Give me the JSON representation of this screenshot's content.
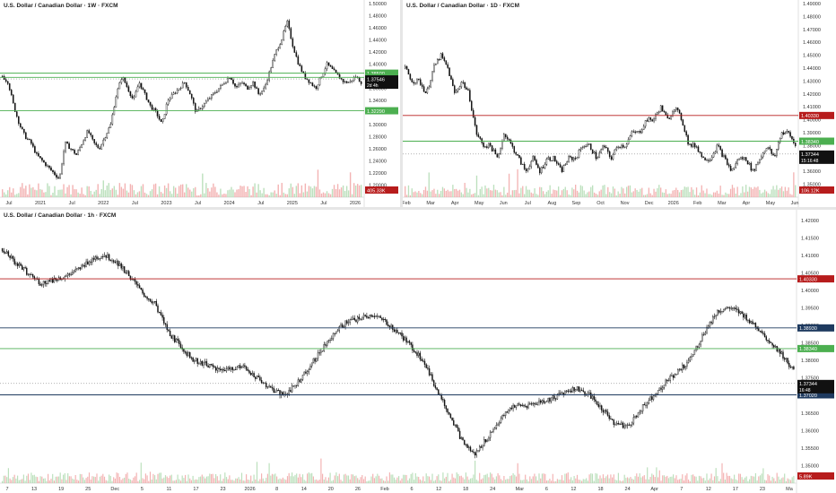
{
  "colors": {
    "candle": "#111111",
    "green_level": "#4caf50",
    "red_level": "#b71c1c",
    "blue_level": "#1e3a5f",
    "vol_up": "#a5d6a7",
    "vol_down": "#ef9a9a",
    "axis_text": "#333333",
    "price_badge": "#111111",
    "vol_badge": "#b71c1c"
  },
  "chart_data": [
    {
      "type": "candlestick",
      "title": "U.S. Dollar / Canadian Dollar · 1W · FXCM",
      "timeframe": "1W",
      "ylim": [
        1.18,
        1.5
      ],
      "y_ticks": [
        "1.50000",
        "1.48000",
        "1.46000",
        "1.44000",
        "1.42000",
        "1.40000",
        "1.38000",
        "1.36000",
        "1.34000",
        "1.32000",
        "1.30000",
        "1.28000",
        "1.26000",
        "1.24000",
        "1.22000",
        "1.20000"
      ],
      "x_ticks": [
        "Jul",
        "2021",
        "Jul",
        "2022",
        "Jul",
        "2023",
        "Jul",
        "2024",
        "Jul",
        "2025",
        "Jul",
        "2026"
      ],
      "price_path": [
        1.38,
        1.37,
        1.33,
        1.3,
        1.28,
        1.27,
        1.25,
        1.24,
        1.23,
        1.22,
        1.21,
        1.27,
        1.26,
        1.25,
        1.27,
        1.29,
        1.27,
        1.26,
        1.28,
        1.3,
        1.35,
        1.38,
        1.36,
        1.34,
        1.37,
        1.35,
        1.33,
        1.32,
        1.3,
        1.34,
        1.35,
        1.36,
        1.37,
        1.35,
        1.32,
        1.33,
        1.34,
        1.35,
        1.36,
        1.37,
        1.38,
        1.36,
        1.37,
        1.36,
        1.37,
        1.35,
        1.36,
        1.39,
        1.42,
        1.44,
        1.47,
        1.43,
        1.4,
        1.38,
        1.37,
        1.36,
        1.38,
        1.4,
        1.39,
        1.38,
        1.37,
        1.37,
        1.38,
        1.37
      ],
      "levels": [
        {
          "price": 1.385,
          "color": "green",
          "label": "1.38500"
        },
        {
          "price": 1.378,
          "color": "green",
          "label": "1.37800"
        },
        {
          "price": 1.3229,
          "color": "green",
          "label": "1.32290"
        }
      ],
      "last_price": "1.37546",
      "last_price_value": 1.37546,
      "countdown": "2d 4h",
      "volume_label": "405.33K"
    },
    {
      "type": "candlestick",
      "title": "U.S. Dollar / Canadian Dollar · 1D · FXCM",
      "timeframe": "1D",
      "ylim": [
        1.34,
        1.49
      ],
      "y_ticks": [
        "1.49000",
        "1.48000",
        "1.47000",
        "1.46000",
        "1.45000",
        "1.44000",
        "1.43000",
        "1.42000",
        "1.41000",
        "1.40000",
        "1.39000",
        "1.38000",
        "1.37000",
        "1.36000",
        "1.35000"
      ],
      "x_ticks": [
        "Feb",
        "Mar",
        "Apr",
        "May",
        "Jun",
        "Jul",
        "Aug",
        "Sep",
        "Oct",
        "Nov",
        "Dec",
        "2026",
        "Feb",
        "Mar",
        "Apr",
        "May",
        "Jun"
      ],
      "price_path": [
        1.44,
        1.43,
        1.43,
        1.42,
        1.44,
        1.45,
        1.44,
        1.42,
        1.43,
        1.42,
        1.39,
        1.38,
        1.38,
        1.37,
        1.39,
        1.38,
        1.37,
        1.36,
        1.37,
        1.36,
        1.37,
        1.37,
        1.36,
        1.37,
        1.37,
        1.38,
        1.38,
        1.37,
        1.38,
        1.37,
        1.38,
        1.38,
        1.39,
        1.39,
        1.4,
        1.4,
        1.41,
        1.4,
        1.41,
        1.4,
        1.38,
        1.38,
        1.37,
        1.37,
        1.38,
        1.37,
        1.36,
        1.37,
        1.37,
        1.36,
        1.37,
        1.38,
        1.37,
        1.39,
        1.39,
        1.38
      ],
      "levels": [
        {
          "price": 1.4033,
          "color": "red",
          "label": "1.40330"
        },
        {
          "price": 1.3834,
          "color": "green",
          "label": "1.38340"
        }
      ],
      "last_price": "1.37344",
      "last_price_value": 1.37344,
      "countdown": "15:16:48",
      "volume_label": "106.12K"
    },
    {
      "type": "candlestick",
      "title": "U.S. Dollar / Canadian Dollar · 1h · FXCM",
      "timeframe": "1h",
      "ylim": [
        1.345,
        1.422
      ],
      "y_ticks": [
        "1.42000",
        "1.41500",
        "1.41000",
        "1.40500",
        "1.40000",
        "1.39500",
        "1.39000",
        "1.38500",
        "1.38000",
        "1.37500",
        "1.37000",
        "1.36500",
        "1.36000",
        "1.35500",
        "1.35000"
      ],
      "x_ticks": [
        "7",
        "13",
        "19",
        "25",
        "Dec",
        "5",
        "11",
        "17",
        "23",
        "2026",
        "8",
        "14",
        "20",
        "26",
        "Feb",
        "6",
        "12",
        "18",
        "24",
        "Mar",
        "6",
        "12",
        "18",
        "24",
        "Apr",
        "7",
        "12",
        "17",
        "23",
        "Ma"
      ],
      "price_path": [
        1.412,
        1.408,
        1.405,
        1.402,
        1.403,
        1.404,
        1.406,
        1.409,
        1.41,
        1.408,
        1.404,
        1.399,
        1.396,
        1.388,
        1.384,
        1.38,
        1.379,
        1.377,
        1.378,
        1.378,
        1.375,
        1.372,
        1.37,
        1.373,
        1.378,
        1.383,
        1.388,
        1.391,
        1.392,
        1.393,
        1.391,
        1.388,
        1.384,
        1.38,
        1.372,
        1.365,
        1.357,
        1.353,
        1.358,
        1.363,
        1.367,
        1.367,
        1.368,
        1.369,
        1.371,
        1.372,
        1.37,
        1.366,
        1.362,
        1.361,
        1.366,
        1.37,
        1.374,
        1.377,
        1.381,
        1.388,
        1.394,
        1.395,
        1.393,
        1.39,
        1.386,
        1.382,
        1.377
      ],
      "levels": [
        {
          "price": 1.4033,
          "color": "red",
          "label": "1.40330"
        },
        {
          "price": 1.3893,
          "color": "blue",
          "label": "1.38930"
        },
        {
          "price": 1.3834,
          "color": "green",
          "label": "1.38340"
        },
        {
          "price": 1.3702,
          "color": "blue",
          "label": "1.37020"
        }
      ],
      "last_price": "1.37344",
      "last_price_value": 1.37344,
      "countdown": "16:48",
      "volume_label": "5.89K"
    }
  ]
}
